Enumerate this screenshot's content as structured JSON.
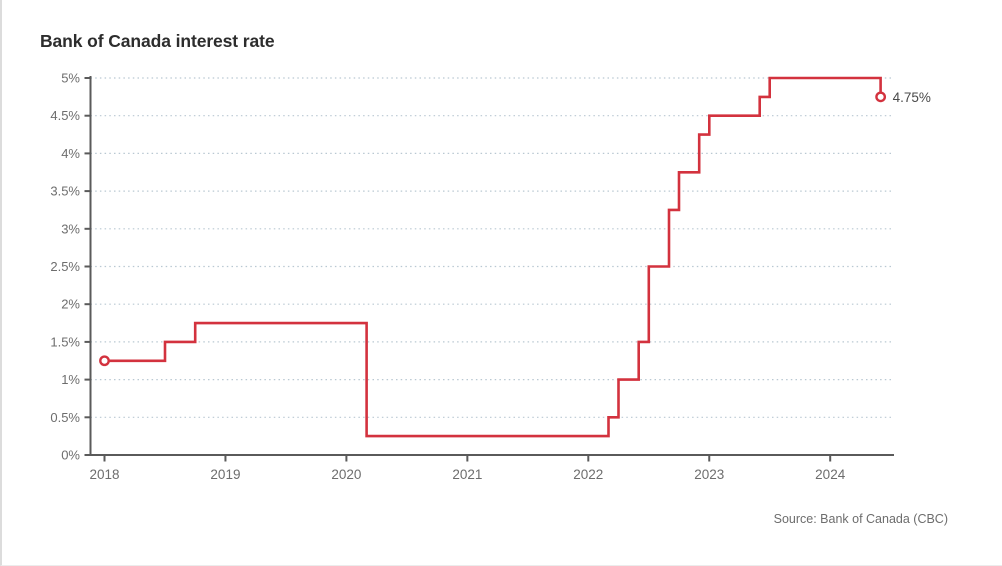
{
  "chart": {
    "title": "Bank of Canada interest rate",
    "source": "Source: Bank of Canada (CBC)"
  },
  "chart_data": {
    "type": "line",
    "subtype": "step-after",
    "title": "Bank of Canada interest rate",
    "xlabel": "",
    "ylabel": "",
    "series": [
      {
        "name": "Bank of Canada interest rate (%)",
        "points": [
          [
            2018.0,
            1.25
          ],
          [
            2018.5,
            1.5
          ],
          [
            2018.75,
            1.75
          ],
          [
            2020.167,
            0.25
          ],
          [
            2022.167,
            0.5
          ],
          [
            2022.25,
            1.0
          ],
          [
            2022.417,
            1.5
          ],
          [
            2022.5,
            2.5
          ],
          [
            2022.667,
            3.25
          ],
          [
            2022.75,
            3.75
          ],
          [
            2022.917,
            4.25
          ],
          [
            2023.0,
            4.5
          ],
          [
            2023.417,
            4.75
          ],
          [
            2023.5,
            5.0
          ],
          [
            2024.417,
            4.75
          ]
        ]
      }
    ],
    "x_ticks": [
      2018,
      2019,
      2020,
      2021,
      2022,
      2023,
      2024
    ],
    "x_tick_labels": [
      "2018",
      "2019",
      "2020",
      "2021",
      "2022",
      "2023",
      "2024"
    ],
    "y_ticks": [
      0,
      0.5,
      1,
      1.5,
      2,
      2.5,
      3,
      3.5,
      4,
      4.5,
      5
    ],
    "y_tick_labels": [
      "0%",
      "0.5%",
      "1%",
      "1.5%",
      "2%",
      "2.5%",
      "3%",
      "3.5%",
      "4%",
      "4.5%",
      "5%"
    ],
    "xlim": [
      2017.88,
      2024.53
    ],
    "ylim": [
      0,
      5
    ],
    "grid": "horizontal-dotted",
    "legend_position": "none",
    "markers": {
      "start": {
        "x": 2018.0,
        "y": 1.25,
        "style": "open-circle"
      },
      "end": {
        "x": 2024.417,
        "y": 4.75,
        "style": "open-circle"
      }
    },
    "annotations": [
      {
        "text": "4.75%",
        "x": 2024.417,
        "y": 4.75
      }
    ],
    "colors": {
      "line": "#d3323e",
      "grid": "#b9c8d2",
      "axis": "#5a5a5a",
      "tick_label": "#6d6d6d",
      "title": "#2d2d2d",
      "annotation": "#4a4a4a",
      "source": "#6d6d6d",
      "background": "#ffffff"
    },
    "source": "Source: Bank of Canada (CBC)"
  }
}
